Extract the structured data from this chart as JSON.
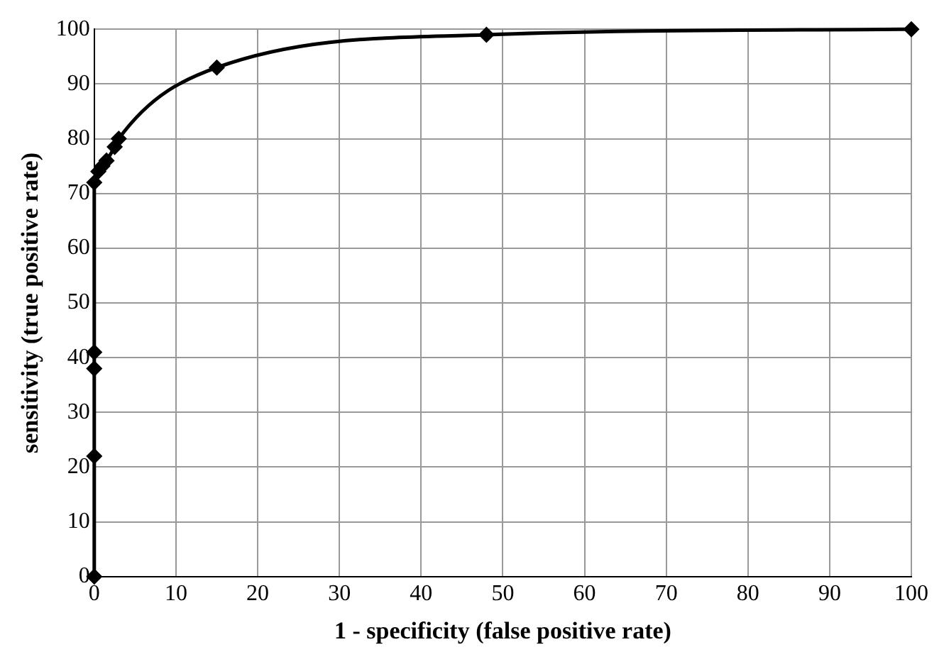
{
  "chart_data": {
    "type": "line",
    "xlabel": "1 - specificity (false positive rate)",
    "ylabel": "sensitivity (true positive rate)",
    "x": [
      0,
      0,
      0,
      0,
      0,
      0.5,
      1,
      1.5,
      2.5,
      3,
      15,
      48,
      100
    ],
    "series": [
      {
        "color": "#000000",
        "values": [
          0,
          22,
          38,
          41,
          72,
          74,
          75,
          76,
          78.5,
          80,
          93,
          99,
          100
        ]
      }
    ],
    "xlim": [
      0,
      100
    ],
    "xticks": [
      0,
      10,
      20,
      30,
      40,
      50,
      60,
      70,
      80,
      90,
      100
    ],
    "ylim": [
      0,
      100
    ],
    "yticks": [
      0,
      10,
      20,
      30,
      40,
      50,
      60,
      70,
      80,
      90,
      100
    ],
    "grid": true,
    "legend": false,
    "marker": "diamond",
    "line_style": "solid"
  }
}
